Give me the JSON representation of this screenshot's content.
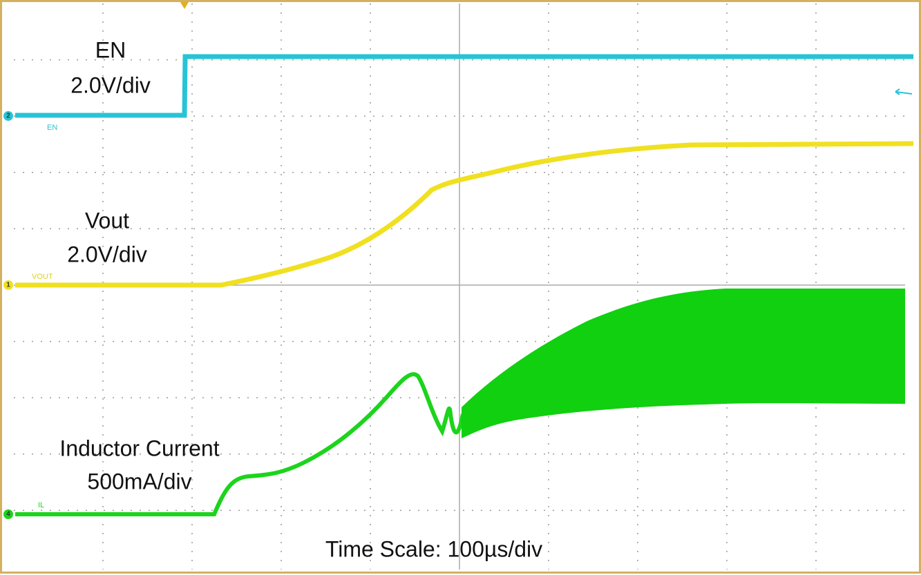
{
  "screen": {
    "annotations": {
      "en_name": "EN",
      "en_scale": "2.0V/div",
      "vout_name": "Vout",
      "vout_scale": "2.0V/div",
      "il_name": "Inductor Current",
      "il_scale": "500mA/div",
      "time_scale": "Time Scale: 100µs/div"
    },
    "channels": [
      {
        "number": "2",
        "label": "EN"
      },
      {
        "number": "1",
        "label": "VOUT"
      },
      {
        "number": "4",
        "label": "IL"
      }
    ]
  }
}
